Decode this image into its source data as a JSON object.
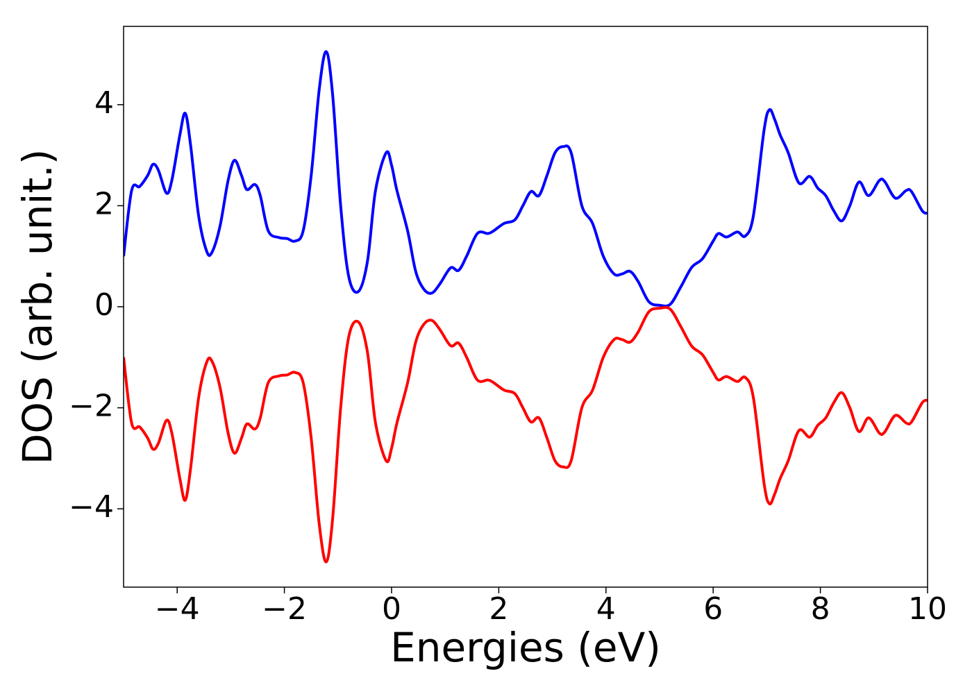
{
  "chart_data": {
    "type": "line",
    "xlabel": "Energies (eV)",
    "ylabel": "DOS (arb. unit.)",
    "x": [
      -5,
      -4.85,
      -4.7,
      -4.55,
      -4.45,
      -4.35,
      -4.2,
      -4.1,
      -3.95,
      -3.85,
      -3.75,
      -3.6,
      -3.45,
      -3.35,
      -3.2,
      -3.05,
      -2.93,
      -2.8,
      -2.7,
      -2.55,
      -2.45,
      -2.3,
      -2.1,
      -1.95,
      -1.8,
      -1.65,
      -1.5,
      -1.35,
      -1.22,
      -1.1,
      -0.95,
      -0.8,
      -0.62,
      -0.45,
      -0.3,
      -0.1,
      0,
      0.1,
      0.3,
      0.45,
      0.6,
      0.75,
      0.9,
      1.1,
      1.25,
      1.4,
      1.6,
      1.8,
      1.9,
      2.1,
      2.3,
      2.45,
      2.6,
      2.75,
      2.9,
      3.05,
      3.2,
      3.35,
      3.55,
      3.75,
      3.95,
      4.15,
      4.3,
      4.45,
      4.6,
      4.8,
      5,
      5.2,
      5.4,
      5.6,
      5.8,
      6,
      6.1,
      6.25,
      6.45,
      6.6,
      6.75,
      6.95,
      7.05,
      7.15,
      7.25,
      7.4,
      7.6,
      7.8,
      7.95,
      8.1,
      8.25,
      8.4,
      8.55,
      8.72,
      8.9,
      9.1,
      9.2,
      9.4,
      9.6,
      9.7,
      9.9,
      10
    ],
    "series": [
      {
        "color": "#0000ff",
        "values": [
          1.0,
          2.3,
          2.38,
          2.6,
          2.82,
          2.7,
          2.25,
          2.5,
          3.4,
          3.83,
          3.2,
          1.8,
          1.1,
          1.08,
          1.6,
          2.5,
          2.9,
          2.6,
          2.32,
          2.42,
          2.2,
          1.5,
          1.37,
          1.35,
          1.3,
          1.5,
          2.6,
          4.3,
          5.05,
          4.2,
          2.0,
          0.6,
          0.3,
          0.9,
          2.3,
          3.05,
          2.8,
          2.3,
          1.5,
          0.7,
          0.35,
          0.27,
          0.45,
          0.77,
          0.72,
          1.0,
          1.45,
          1.45,
          1.5,
          1.65,
          1.72,
          2.0,
          2.28,
          2.2,
          2.6,
          3.05,
          3.17,
          3.05,
          2.0,
          1.65,
          1.0,
          0.65,
          0.65,
          0.7,
          0.5,
          0.1,
          0.03,
          0.05,
          0.4,
          0.78,
          0.95,
          1.3,
          1.45,
          1.38,
          1.48,
          1.4,
          1.8,
          3.5,
          3.9,
          3.7,
          3.4,
          3.05,
          2.45,
          2.58,
          2.35,
          2.2,
          1.9,
          1.7,
          2.0,
          2.47,
          2.2,
          2.5,
          2.48,
          2.15,
          2.3,
          2.28,
          1.9,
          1.85
        ]
      },
      {
        "color": "#ff0000",
        "values": [
          -1.0,
          -2.3,
          -2.38,
          -2.6,
          -2.82,
          -2.7,
          -2.25,
          -2.5,
          -3.4,
          -3.83,
          -3.2,
          -1.8,
          -1.1,
          -1.08,
          -1.6,
          -2.5,
          -2.9,
          -2.6,
          -2.32,
          -2.42,
          -2.2,
          -1.5,
          -1.37,
          -1.35,
          -1.3,
          -1.5,
          -2.6,
          -4.3,
          -5.05,
          -4.2,
          -2.0,
          -0.6,
          -0.3,
          -0.9,
          -2.3,
          -3.05,
          -2.8,
          -2.3,
          -1.5,
          -0.7,
          -0.35,
          -0.27,
          -0.45,
          -0.77,
          -0.72,
          -1.0,
          -1.45,
          -1.45,
          -1.5,
          -1.65,
          -1.72,
          -2.0,
          -2.28,
          -2.2,
          -2.6,
          -3.05,
          -3.17,
          -3.05,
          -2.0,
          -1.65,
          -1.0,
          -0.65,
          -0.65,
          -0.7,
          -0.5,
          -0.1,
          -0.03,
          -0.05,
          -0.4,
          -0.78,
          -0.95,
          -1.3,
          -1.45,
          -1.38,
          -1.48,
          -1.4,
          -1.8,
          -3.5,
          -3.9,
          -3.7,
          -3.4,
          -3.05,
          -2.45,
          -2.58,
          -2.35,
          -2.2,
          -1.9,
          -1.7,
          -2.0,
          -2.47,
          -2.2,
          -2.5,
          -2.48,
          -2.15,
          -2.3,
          -2.28,
          -1.9,
          -1.85
        ]
      }
    ],
    "xlim": [
      -5,
      10
    ],
    "xticks": [
      {
        "value": -4,
        "label": "−4"
      },
      {
        "value": -2,
        "label": "−2"
      },
      0,
      2,
      4,
      6,
      8,
      10
    ],
    "ylim": [
      -5.55,
      5.55
    ],
    "yticks": [
      {
        "value": -4,
        "label": "−4"
      },
      {
        "value": -2,
        "label": "−2"
      },
      0,
      2,
      4
    ]
  }
}
